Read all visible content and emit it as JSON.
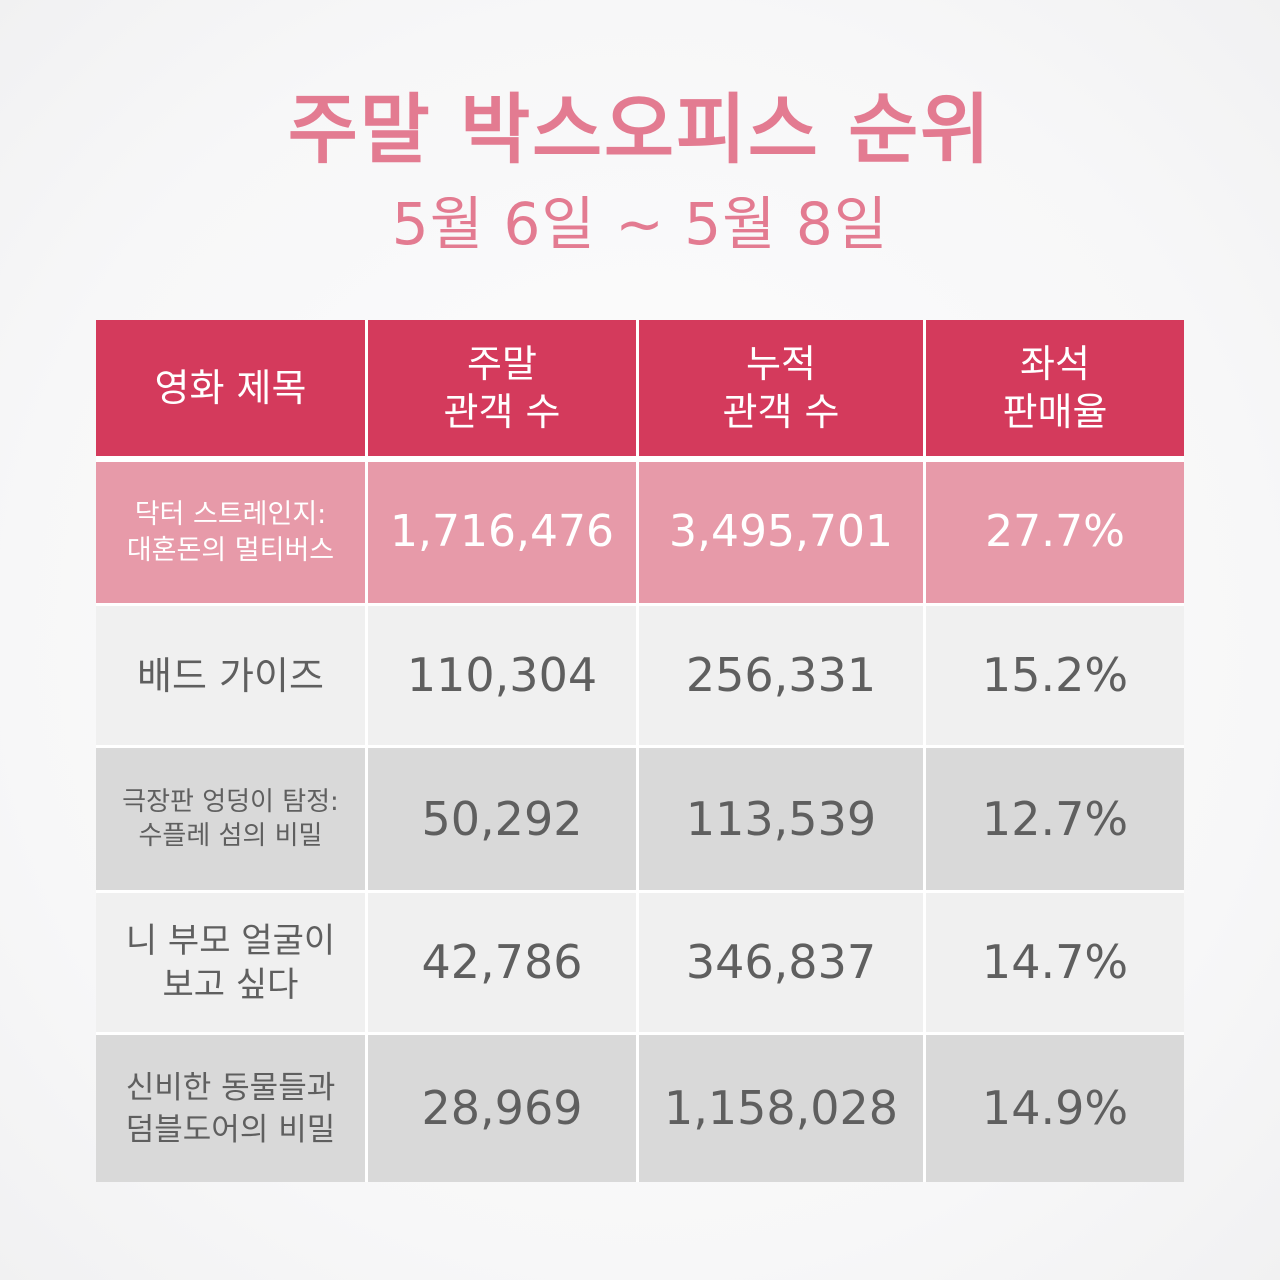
{
  "title": "주말 박스오피스 순위",
  "subtitle": "5월 6일 ~ 5월 8일",
  "colors": {
    "accent": "#e37b91",
    "header_bg": "#d43a5c",
    "highlight_row_bg": "#e79aa9",
    "light_row_bg": "#f0f0f0",
    "dark_row_bg": "#d9d9d9"
  },
  "chart_data": {
    "type": "table",
    "title": "주말 박스오피스 순위",
    "subtitle": "5월 6일 ~ 5월 8일",
    "columns": [
      "영화 제목",
      "주말\n관객 수",
      "누적\n관객 수",
      "좌석\n판매율"
    ],
    "rows": [
      {
        "title": "닥터 스트레인지:\n대혼돈의 멀티버스",
        "weekend": "1,716,476",
        "cumulative": "3,495,701",
        "seat_rate": "27.7%"
      },
      {
        "title": "배드 가이즈",
        "weekend": "110,304",
        "cumulative": "256,331",
        "seat_rate": "15.2%"
      },
      {
        "title": "극장판 엉덩이 탐정:\n수플레 섬의 비밀",
        "weekend": "50,292",
        "cumulative": "113,539",
        "seat_rate": "12.7%"
      },
      {
        "title": "니 부모 얼굴이\n보고 싶다",
        "weekend": "42,786",
        "cumulative": "346,837",
        "seat_rate": "14.7%"
      },
      {
        "title": "신비한 동물들과\n덤블도어의 비밀",
        "weekend": "28,969",
        "cumulative": "1,158,028",
        "seat_rate": "14.9%"
      }
    ]
  }
}
